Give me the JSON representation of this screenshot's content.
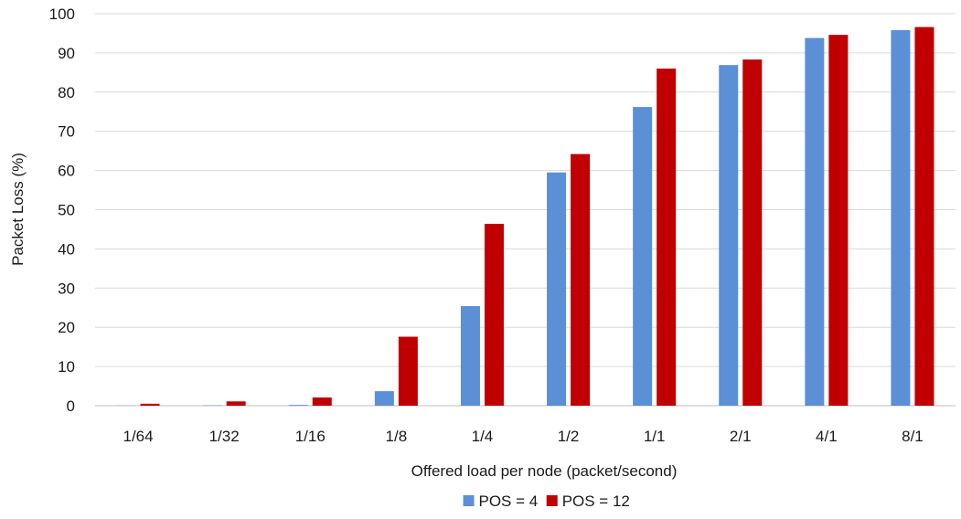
{
  "chart_data": {
    "type": "bar",
    "title": "",
    "xlabel": "Offered load per node (packet/second)",
    "ylabel": "Packet Loss (%)",
    "ylim": [
      0,
      100
    ],
    "yticks": [
      0,
      10,
      20,
      30,
      40,
      50,
      60,
      70,
      80,
      90,
      100
    ],
    "grid": true,
    "legend_position": "bottom",
    "categories": [
      "1/64",
      "1/32",
      "1/16",
      "1/8",
      "1/4",
      "1/2",
      "1/1",
      "2/1",
      "4/1",
      "8/1"
    ],
    "series": [
      {
        "name": "POS = 4",
        "color": "#5B8FD6",
        "values": [
          0.05,
          0.1,
          0.2,
          3.7,
          25.4,
          59.5,
          76.2,
          86.9,
          93.8,
          95.8
        ]
      },
      {
        "name": "POS = 12",
        "color": "#C00000",
        "values": [
          0.5,
          1.1,
          2.1,
          17.6,
          46.4,
          64.2,
          86.0,
          88.3,
          94.6,
          96.6
        ]
      }
    ]
  }
}
